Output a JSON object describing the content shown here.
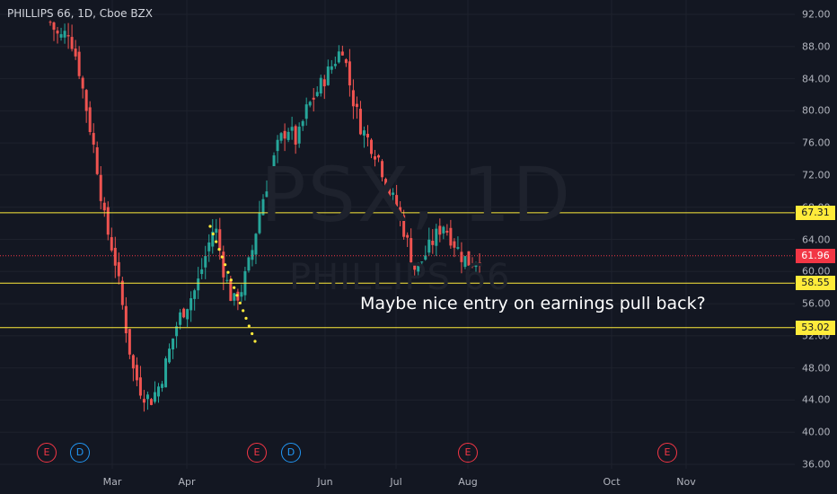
{
  "header": {
    "symbol_label": "PHILLIPS 66, 1D, Cboe BZX"
  },
  "watermark": {
    "ticker": "PSX, 1D",
    "name": "PHILLIPS 66"
  },
  "annotation": {
    "text": "Maybe nice entry on earnings pull back?"
  },
  "price_axis": {
    "ticks": [
      "92.00",
      "88.00",
      "84.00",
      "80.00",
      "76.00",
      "72.00",
      "68.00",
      "64.00",
      "60.00",
      "56.00",
      "52.00",
      "48.00",
      "44.00",
      "40.00",
      "36.00"
    ],
    "levels": [
      {
        "label": "67.31",
        "price": 67.31,
        "color": "#ffeb3b"
      },
      {
        "label": "58.55",
        "price": 58.55,
        "color": "#ffeb3b"
      },
      {
        "label": "53.02",
        "price": 53.02,
        "color": "#ffeb3b"
      }
    ],
    "last_price": {
      "label": "61.96",
      "price": 61.96,
      "color": "#f23645"
    }
  },
  "time_axis": {
    "labels": [
      "Mar",
      "Apr",
      "Jun",
      "Jul",
      "Aug",
      "Oct",
      "Nov"
    ]
  },
  "events": [
    {
      "type": "E"
    },
    {
      "type": "D"
    },
    {
      "type": "E"
    },
    {
      "type": "D"
    },
    {
      "type": "E"
    },
    {
      "type": "E"
    }
  ],
  "colors": {
    "background": "#131722",
    "up": "#26a69a",
    "down": "#ef5350",
    "level_line": "#ffeb3b",
    "trend_dots": "#ffeb3b"
  },
  "chart_data": {
    "type": "candlestick",
    "ylim": [
      36,
      92
    ],
    "approx_closes": [
      91,
      89,
      90,
      86,
      80,
      74,
      66,
      62,
      55,
      48,
      45,
      44,
      46,
      50,
      54,
      56,
      58,
      62,
      66,
      60,
      56,
      58,
      62,
      68,
      72,
      76,
      78,
      76,
      80,
      82,
      84,
      86,
      88,
      82,
      78,
      76,
      74,
      70,
      68,
      64,
      60,
      62,
      64,
      66,
      64,
      62,
      61,
      62
    ]
  }
}
